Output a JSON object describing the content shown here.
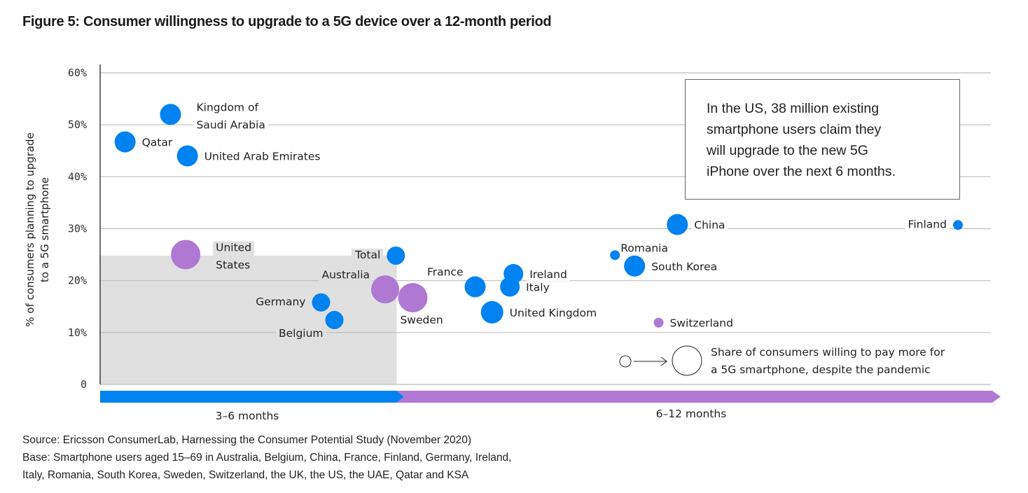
{
  "title": "Figure 5: Consumer willingness to upgrade to a 5G device over a 12-month period",
  "annotation": "In the US, 38 million existing smartphone users claim they will upgrade to the new 5G iPhone over the next 6 months.",
  "annotation_lines": [
    "In the US, 38 million existing",
    "smartphone users claim they",
    "will upgrade to the new 5G",
    "iPhone over the next 6 months."
  ],
  "legend": {
    "size_label_lines": [
      "Share of consumers willing to pay more for",
      "a 5G smartphone, despite the pandemic"
    ]
  },
  "source_lines": [
    "Source: Ericsson ConsumerLab, Harnessing the Consumer Potential Study (November 2020)",
    "Base: Smartphone users aged 15–69 in Australia, Belgium, China, France, Finland, Germany, Ireland,",
    "Italy, Romania, South Korea, Sweden, Switzerland, the UK, the US, the UAE, Qatar and KSA"
  ],
  "colors": {
    "blue": "#0082F0",
    "purple": "#AF78D2",
    "shade": "#E0E0E0",
    "grid": "#BDBDBD"
  },
  "chart_data": {
    "type": "scatter",
    "subtype": "bubble",
    "title": "Figure 5: Consumer willingness to upgrade to a 5G device over a 12-month period",
    "ylabel": "% of consumers planning to upgrade to a 5G smartphone",
    "xlabel": "",
    "ylim": [
      0,
      60
    ],
    "yticks": [
      0,
      10,
      20,
      30,
      40,
      50,
      60
    ],
    "ytick_labels": [
      "0",
      "10%",
      "20%",
      "30%",
      "40%",
      "50%",
      "60%"
    ],
    "x_axis_note": "x is relative timeline position (0 = start, 1 = end); no numeric ticks shown",
    "xlim": [
      0,
      1
    ],
    "x_periods": [
      {
        "label": "3–6 months",
        "from": 0,
        "to": 0.333,
        "color": "blue"
      },
      {
        "label": "6–12 months",
        "from": 0.333,
        "to": 1,
        "color": "purple"
      }
    ],
    "shaded_region": {
      "x_from": 0,
      "x_to": 0.333,
      "y_from": 0,
      "y_to": 24.8
    },
    "grid": true,
    "size_legend": "Share of consumers willing to pay more for a 5G smartphone, despite the pandemic",
    "points": [
      {
        "name": "Kingdom of Saudi Arabia",
        "label_lines": [
          "Kingdom of",
          "Saudi Arabia"
        ],
        "x": 0.079,
        "y": 52,
        "size": 15,
        "color": "blue",
        "label_pos": "right-far"
      },
      {
        "name": "Qatar",
        "label_lines": [
          "Qatar"
        ],
        "x": 0.028,
        "y": 46.7,
        "size": 15,
        "color": "blue",
        "label_pos": "right"
      },
      {
        "name": "United Arab Emirates",
        "label_lines": [
          "United Arab Emirates"
        ],
        "x": 0.098,
        "y": 44,
        "size": 15,
        "color": "blue",
        "label_pos": "right"
      },
      {
        "name": "United States",
        "label_lines": [
          "United",
          "States"
        ],
        "x": 0.096,
        "y": 25,
        "size": 21,
        "color": "purple",
        "label_pos": "right-far"
      },
      {
        "name": "Total",
        "label_lines": [
          "Total"
        ],
        "x": 0.332,
        "y": 24.8,
        "size": 13,
        "color": "blue",
        "label_pos": "left"
      },
      {
        "name": "Australia",
        "label_lines": [
          "Australia"
        ],
        "x": 0.32,
        "y": 18.3,
        "size": 20,
        "color": "purple",
        "label_pos": "above-left"
      },
      {
        "name": "Sweden",
        "label_lines": [
          "Sweden"
        ],
        "x": 0.351,
        "y": 16.7,
        "size": 21,
        "color": "purple",
        "label_pos": "below"
      },
      {
        "name": "Germany",
        "label_lines": [
          "Germany"
        ],
        "x": 0.248,
        "y": 15.8,
        "size": 13,
        "color": "blue",
        "label_pos": "left"
      },
      {
        "name": "Belgium",
        "label_lines": [
          "Belgium"
        ],
        "x": 0.263,
        "y": 12.4,
        "size": 13,
        "color": "blue",
        "label_pos": "below-left"
      },
      {
        "name": "France",
        "label_lines": [
          "France"
        ],
        "x": 0.421,
        "y": 18.8,
        "size": 15,
        "color": "blue",
        "label_pos": "above-left"
      },
      {
        "name": "Ireland",
        "label_lines": [
          "Ireland"
        ],
        "x": 0.464,
        "y": 21.3,
        "size": 14,
        "color": "blue",
        "label_pos": "right"
      },
      {
        "name": "Italy",
        "label_lines": [
          "Italy"
        ],
        "x": 0.46,
        "y": 18.8,
        "size": 14,
        "color": "blue",
        "label_pos": "right"
      },
      {
        "name": "United Kingdom",
        "label_lines": [
          "United Kingdom"
        ],
        "x": 0.44,
        "y": 13.9,
        "size": 16,
        "color": "blue",
        "label_pos": "right"
      },
      {
        "name": "China",
        "label_lines": [
          "China"
        ],
        "x": 0.648,
        "y": 30.8,
        "size": 15,
        "color": "blue",
        "label_pos": "right"
      },
      {
        "name": "Romania",
        "label_lines": [
          "Romania"
        ],
        "x": 0.578,
        "y": 24.9,
        "size": 7,
        "color": "blue",
        "label_pos": "right-up"
      },
      {
        "name": "South Korea",
        "label_lines": [
          "South Korea"
        ],
        "x": 0.6,
        "y": 22.8,
        "size": 15,
        "color": "blue",
        "label_pos": "right"
      },
      {
        "name": "Switzerland",
        "label_lines": [
          "Switzerland"
        ],
        "x": 0.627,
        "y": 11.9,
        "size": 7,
        "color": "purple",
        "label_pos": "right"
      },
      {
        "name": "Finland",
        "label_lines": [
          "Finland"
        ],
        "x": 0.963,
        "y": 30.7,
        "size": 7,
        "color": "blue",
        "label_pos": "left"
      }
    ]
  }
}
